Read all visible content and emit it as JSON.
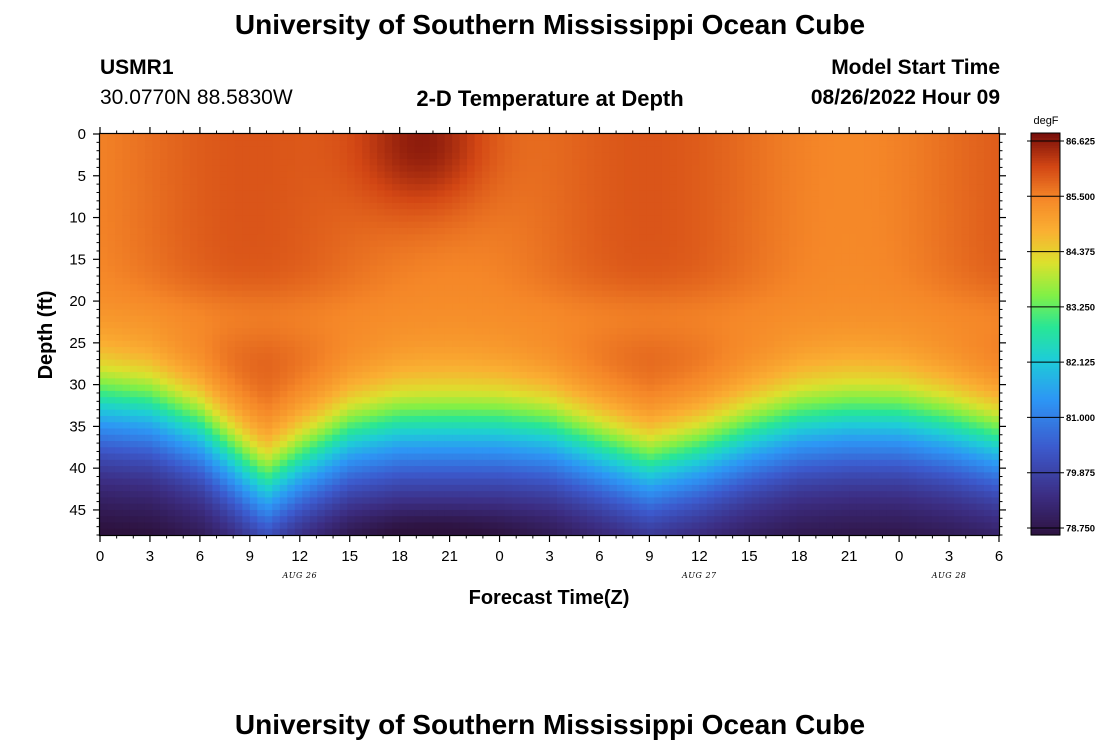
{
  "header": {
    "title": "University of Southern Mississippi Ocean Cube",
    "station_id": "USMR1",
    "coordinates": "30.0770N  88.5830W",
    "plot_title": "2-D Temperature at Depth",
    "model_start_label": "Model Start Time",
    "model_start_value": "08/26/2022 Hour 09"
  },
  "footer": {
    "title": "University of Southern Mississippi Ocean Cube"
  },
  "chart_data": {
    "type": "heatmap",
    "title": "2-D Temperature at Depth",
    "xlabel": "Forecast Time(Z)",
    "ylabel": "Depth (ft)",
    "x_tick_labels": [
      "0",
      "3",
      "6",
      "9",
      "12",
      "15",
      "18",
      "21",
      "0",
      "3",
      "6",
      "9",
      "12",
      "15",
      "18",
      "21",
      "0",
      "3",
      "6"
    ],
    "x_date_labels": [
      {
        "label": "AUG 26",
        "hour_index": 12
      },
      {
        "label": "AUG 27",
        "hour_index": 36
      },
      {
        "label": "AUG 28",
        "hour_index": 51
      }
    ],
    "xlim_hours": [
      0,
      54
    ],
    "y_tick_labels": [
      "0",
      "5",
      "10",
      "15",
      "20",
      "25",
      "30",
      "35",
      "40",
      "45"
    ],
    "ylim_ft": [
      0,
      48
    ],
    "colorbar": {
      "unit": "degF",
      "ticks": [
        "86.625",
        "85.500",
        "84.375",
        "83.250",
        "82.125",
        "81.000",
        "79.875",
        "78.750"
      ],
      "range": [
        78.75,
        86.625
      ]
    },
    "thermocline_depth_profile": {
      "hours": [
        0,
        3,
        6,
        9,
        10,
        12,
        15,
        18,
        21,
        24,
        27,
        30,
        33,
        36,
        39,
        42,
        45,
        48,
        51,
        54
      ],
      "depth_ft": [
        32,
        32.5,
        35,
        40,
        41.5,
        39,
        36,
        35,
        35,
        35,
        35.5,
        37.5,
        39.5,
        38,
        36,
        34.5,
        34,
        34,
        35,
        36.5
      ]
    },
    "warm_core": {
      "hour": 19.5,
      "depth_ft": 1,
      "value": 86.625
    },
    "coldest": {
      "hour": 20,
      "depth_ft": 47.5,
      "value": 78.75
    }
  }
}
